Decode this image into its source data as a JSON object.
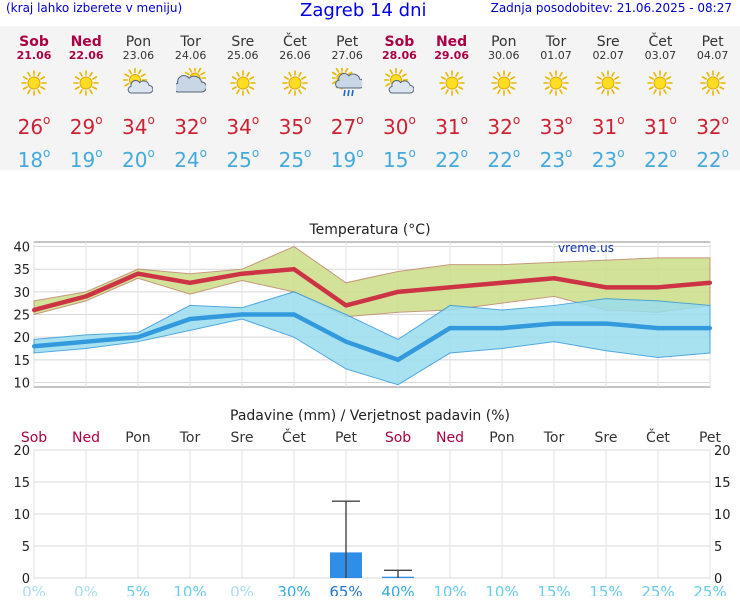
{
  "header": {
    "note": "(kraj lahko izberete v meniju)",
    "title": "Zagreb 14 dni",
    "updated": "Zadnja posodobitev: 21.06.2025 - 08:27"
  },
  "days": [
    {
      "name": "Sob",
      "date": "21.06",
      "weekend": true,
      "icon": "sun",
      "tmax": "26",
      "tmin": "18"
    },
    {
      "name": "Ned",
      "date": "22.06",
      "weekend": true,
      "icon": "sun",
      "tmax": "29",
      "tmin": "19"
    },
    {
      "name": "Pon",
      "date": "23.06",
      "weekend": false,
      "icon": "sun-cloud",
      "tmax": "34",
      "tmin": "20"
    },
    {
      "name": "Tor",
      "date": "24.06",
      "weekend": false,
      "icon": "cloud-sun",
      "tmax": "32",
      "tmin": "24"
    },
    {
      "name": "Sre",
      "date": "25.06",
      "weekend": false,
      "icon": "sun",
      "tmax": "34",
      "tmin": "25"
    },
    {
      "name": "Čet",
      "date": "26.06",
      "weekend": false,
      "icon": "sun",
      "tmax": "35",
      "tmin": "25"
    },
    {
      "name": "Pet",
      "date": "27.06",
      "weekend": false,
      "icon": "cloud-rain-sun",
      "tmax": "27",
      "tmin": "19"
    },
    {
      "name": "Sob",
      "date": "28.06",
      "weekend": true,
      "icon": "sun-cloud",
      "tmax": "30",
      "tmin": "15"
    },
    {
      "name": "Ned",
      "date": "29.06",
      "weekend": true,
      "icon": "sun",
      "tmax": "31",
      "tmin": "22"
    },
    {
      "name": "Pon",
      "date": "30.06",
      "weekend": false,
      "icon": "sun",
      "tmax": "32",
      "tmin": "22"
    },
    {
      "name": "Tor",
      "date": "01.07",
      "weekend": false,
      "icon": "sun",
      "tmax": "33",
      "tmin": "23"
    },
    {
      "name": "Sre",
      "date": "02.07",
      "weekend": false,
      "icon": "sun",
      "tmax": "31",
      "tmin": "23"
    },
    {
      "name": "Čet",
      "date": "03.07",
      "weekend": false,
      "icon": "sun",
      "tmax": "31",
      "tmin": "22"
    },
    {
      "name": "Pet",
      "date": "04.07",
      "weekend": false,
      "icon": "sun",
      "tmax": "32",
      "tmin": "22"
    }
  ],
  "degree_symbol": "o",
  "colors": {
    "max": "#cc2233",
    "min": "#44aadd",
    "weekend": "#aa0044",
    "rain_bar": "#2f8ee8",
    "prob": "#66ccee",
    "max_band": "#ccdd88",
    "min_band": "#99ddee"
  },
  "chart_data": [
    {
      "type": "line",
      "title": "Temperatura (°C)",
      "watermark": "vreme.us",
      "ylim": [
        9,
        41
      ],
      "yticks": [
        10,
        15,
        20,
        25,
        30,
        35,
        40
      ],
      "grid": true,
      "series": [
        {
          "values": [
            26,
            29,
            34,
            32,
            34,
            35,
            27,
            30,
            31,
            32,
            33,
            31,
            31,
            32
          ]
        },
        {
          "values": [
            18,
            19,
            20,
            24,
            25,
            25,
            19,
            15,
            22,
            22,
            23,
            23,
            22,
            22
          ]
        }
      ],
      "max_band_upper": [
        28,
        30,
        35,
        34,
        35,
        40,
        32,
        34.5,
        36,
        36,
        36.5,
        37,
        37.5,
        37.5
      ],
      "max_band_lower": [
        25,
        28,
        33,
        29.5,
        32.5,
        30,
        24.5,
        25.5,
        26,
        27.5,
        29,
        26,
        25.5,
        27
      ],
      "min_band_upper": [
        19.5,
        20.5,
        21,
        27,
        26.5,
        30,
        25,
        19.5,
        27,
        26,
        27,
        28.5,
        28,
        27
      ],
      "min_band_lower": [
        16.5,
        17.5,
        19,
        21.5,
        24,
        20,
        13,
        9.5,
        16.5,
        17.5,
        19,
        17,
        15.5,
        16.5
      ]
    },
    {
      "type": "bar",
      "title": "Padavine (mm) / Verjetnost padavin (%)",
      "ylim": [
        0,
        20
      ],
      "yticks": [
        0,
        5,
        10,
        15,
        20
      ],
      "precip_mm": [
        0,
        0,
        0,
        0,
        0,
        0,
        4,
        0.2,
        0,
        0,
        0,
        0,
        0,
        0
      ],
      "precip_err_high": [
        0,
        0,
        0,
        0,
        0,
        0,
        12,
        1.2,
        0,
        0,
        0,
        0,
        0,
        0
      ],
      "probability_pct": [
        "0%",
        "0%",
        "5%",
        "10%",
        "0%",
        "30%",
        "65%",
        "40%",
        "10%",
        "10%",
        "15%",
        "15%",
        "25%",
        "25%"
      ]
    }
  ]
}
